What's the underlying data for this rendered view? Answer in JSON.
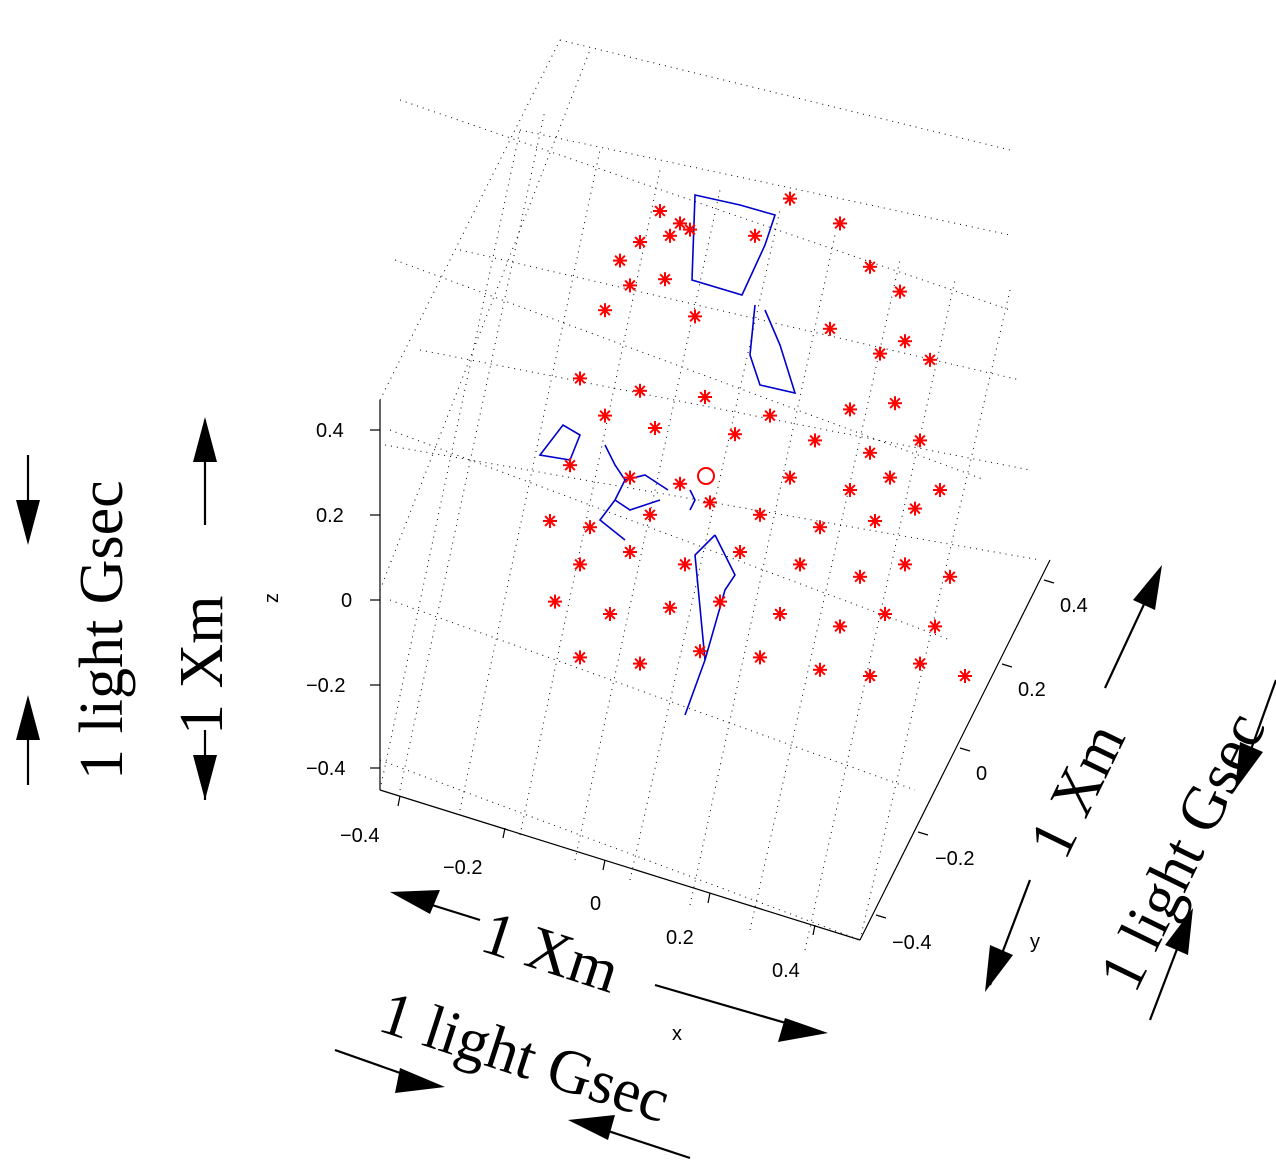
{
  "chart_data": {
    "type": "scatter",
    "projection": "3d",
    "axes": {
      "x": {
        "label": "x",
        "ticks": [
          -0.4,
          -0.2,
          0,
          0.2,
          0.4
        ],
        "tick_labels": [
          "−0.4",
          "−0.2",
          "0",
          "0.2",
          "0.4"
        ]
      },
      "y": {
        "label": "y",
        "ticks": [
          -0.4,
          -0.2,
          0,
          0.2,
          0.4
        ],
        "tick_labels": [
          "−0.4",
          "−0.2",
          "0",
          "0.2",
          "0.4"
        ]
      },
      "z": {
        "label": "z",
        "ticks": [
          -0.4,
          -0.2,
          0,
          0.2,
          0.4
        ],
        "tick_labels": [
          "−0.4",
          "−0.2",
          "0",
          "0.2",
          "0.4"
        ]
      }
    },
    "grid": true,
    "marker_color": "#ff0000",
    "line_color": "#0000cc",
    "observer_marker": "circle",
    "annotations": {
      "left_outer": "1 light Gsec",
      "left_inner": "1 Xm",
      "bottom_upper": "1 Xm",
      "bottom_lower": "1 light Gsec",
      "right_inner": "1 Xm",
      "right_outer": "1 light Gsec"
    },
    "points": [
      [
        -0.14,
        0.45
      ],
      [
        -0.1,
        0.43
      ],
      [
        -0.12,
        0.41
      ],
      [
        -0.08,
        0.42
      ],
      [
        0.12,
        0.47
      ],
      [
        0.22,
        0.43
      ],
      [
        0.05,
        0.41
      ],
      [
        -0.18,
        0.4
      ],
      [
        -0.22,
        0.37
      ],
      [
        -0.2,
        0.33
      ],
      [
        -0.13,
        0.34
      ],
      [
        0.28,
        0.36
      ],
      [
        0.34,
        0.32
      ],
      [
        -0.25,
        0.29
      ],
      [
        -0.07,
        0.28
      ],
      [
        0.2,
        0.26
      ],
      [
        0.3,
        0.22
      ],
      [
        0.35,
        0.24
      ],
      [
        0.4,
        0.21
      ],
      [
        -0.3,
        0.18
      ],
      [
        -0.18,
        0.16
      ],
      [
        -0.05,
        0.15
      ],
      [
        0.08,
        0.12
      ],
      [
        0.24,
        0.13
      ],
      [
        0.33,
        0.14
      ],
      [
        -0.25,
        0.12
      ],
      [
        -0.15,
        0.1
      ],
      [
        0.01,
        0.09
      ],
      [
        0.17,
        0.08
      ],
      [
        0.28,
        0.06
      ],
      [
        0.38,
        0.08
      ],
      [
        -0.32,
        0.04
      ],
      [
        -0.2,
        0.02
      ],
      [
        -0.1,
        0.01
      ],
      [
        0.12,
        0.02
      ],
      [
        0.24,
        0.0
      ],
      [
        0.32,
        0.02
      ],
      [
        0.42,
        0.0
      ],
      [
        -0.36,
        -0.05
      ],
      [
        -0.28,
        -0.06
      ],
      [
        -0.16,
        -0.04
      ],
      [
        -0.04,
        -0.02
      ],
      [
        0.06,
        -0.04
      ],
      [
        0.18,
        -0.06
      ],
      [
        0.29,
        -0.05
      ],
      [
        0.37,
        -0.03
      ],
      [
        -0.3,
        -0.12
      ],
      [
        -0.2,
        -0.1
      ],
      [
        -0.09,
        -0.12
      ],
      [
        0.02,
        -0.1
      ],
      [
        0.14,
        -0.12
      ],
      [
        0.26,
        -0.14
      ],
      [
        0.35,
        -0.12
      ],
      [
        0.44,
        -0.14
      ],
      [
        -0.35,
        -0.18
      ],
      [
        -0.24,
        -0.2
      ],
      [
        -0.12,
        -0.19
      ],
      [
        -0.02,
        -0.18
      ],
      [
        0.1,
        -0.2
      ],
      [
        0.22,
        -0.22
      ],
      [
        0.31,
        -0.2
      ],
      [
        0.41,
        -0.22
      ],
      [
        -0.3,
        -0.27
      ],
      [
        -0.18,
        -0.28
      ],
      [
        -0.06,
        -0.26
      ],
      [
        0.06,
        -0.27
      ],
      [
        0.18,
        -0.29
      ],
      [
        0.28,
        -0.3
      ],
      [
        0.38,
        -0.28
      ],
      [
        0.47,
        -0.3
      ]
    ]
  }
}
